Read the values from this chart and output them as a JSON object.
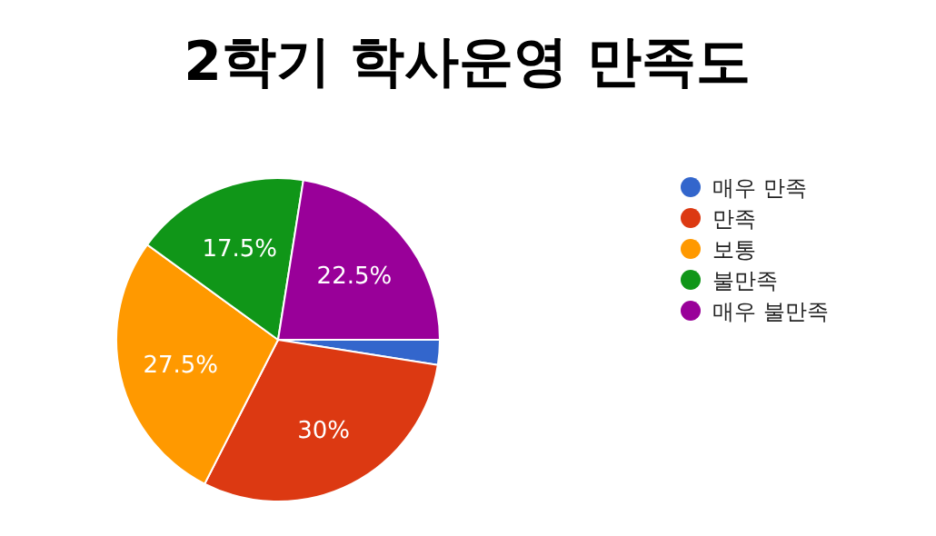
{
  "chart_data": {
    "type": "pie",
    "title": "2학기 학사운영 만족도",
    "categories": [
      "매우 만족",
      "만족",
      "보통",
      "불만족",
      "매우 불만족"
    ],
    "values": [
      2.5,
      30,
      27.5,
      17.5,
      22.5
    ],
    "colors": [
      "#3366cc",
      "#dc3912",
      "#ff9900",
      "#109618",
      "#990099"
    ],
    "value_labels": [
      null,
      "30%",
      "27.5%",
      "17.5%",
      "22.5%"
    ],
    "legend": "right"
  }
}
